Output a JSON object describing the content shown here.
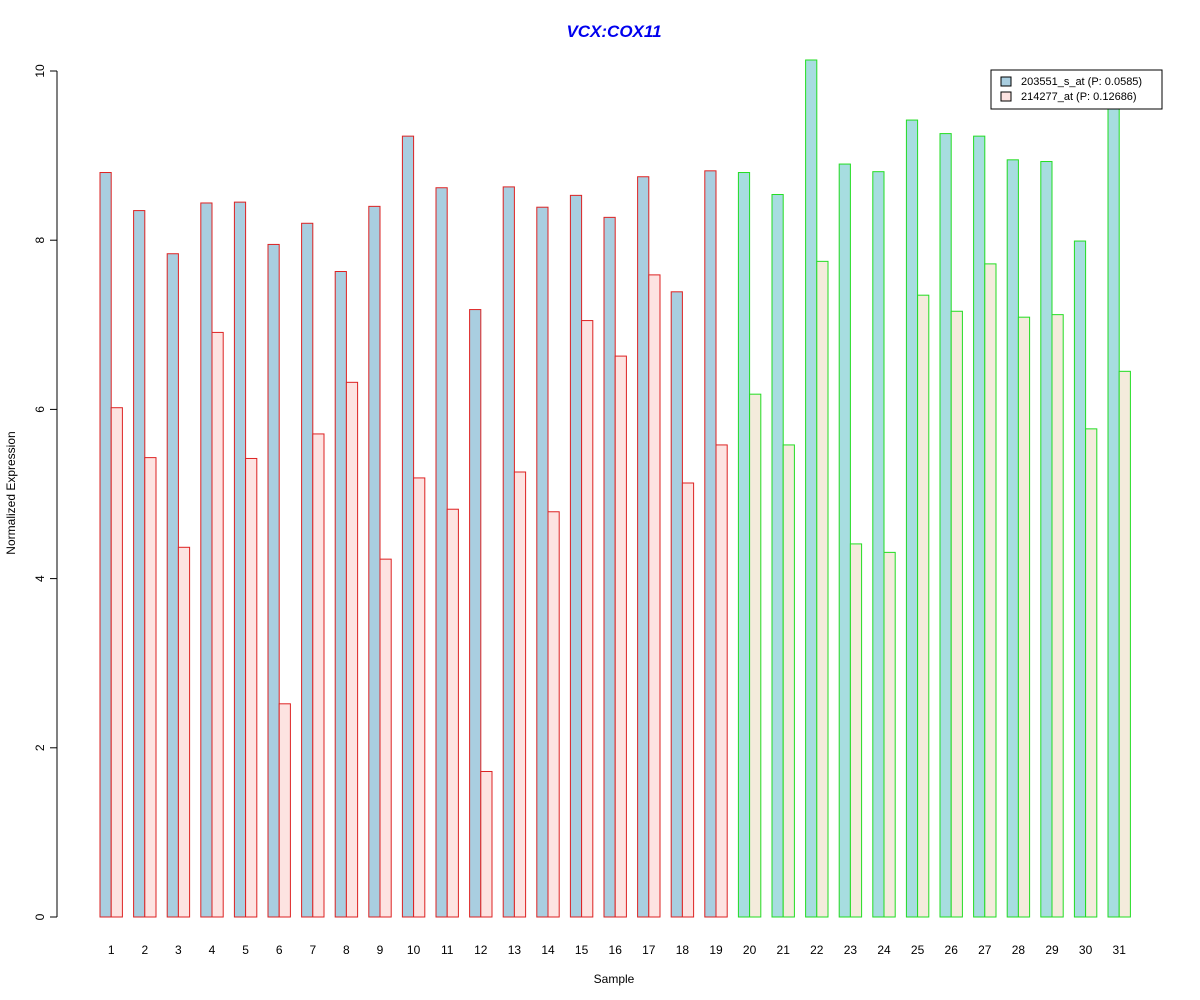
{
  "chart_data": {
    "type": "bar",
    "title": "VCX:COX11",
    "xlabel": "Sample",
    "ylabel": "Normalized Expression",
    "ylim": [
      0,
      10
    ],
    "yticks": [
      "0",
      "2",
      "4",
      "6",
      "8",
      "10"
    ],
    "categories": [
      "1",
      "2",
      "3",
      "4",
      "5",
      "6",
      "7",
      "8",
      "9",
      "10",
      "11",
      "12",
      "13",
      "14",
      "15",
      "16",
      "17",
      "18",
      "19",
      "20",
      "21",
      "22",
      "23",
      "24",
      "25",
      "26",
      "27",
      "28",
      "29",
      "30",
      "31"
    ],
    "series": [
      {
        "name": "203551_s_at (P: 0.0585)",
        "values": [
          8.8,
          8.35,
          7.84,
          8.44,
          8.45,
          7.95,
          8.2,
          7.63,
          8.4,
          9.23,
          8.62,
          7.18,
          8.63,
          8.39,
          8.53,
          8.27,
          8.75,
          7.39,
          8.82,
          8.8,
          8.54,
          10.13,
          8.9,
          8.81,
          9.42,
          9.26,
          9.23,
          8.95,
          8.93,
          7.99,
          9.65
        ]
      },
      {
        "name": "214277_at (P: 0.12686)",
        "values": [
          6.02,
          5.43,
          4.37,
          6.91,
          5.42,
          2.52,
          5.71,
          6.32,
          4.23,
          5.19,
          4.82,
          1.72,
          5.26,
          4.79,
          7.05,
          6.63,
          7.59,
          5.13,
          5.58,
          6.18,
          5.58,
          7.75,
          4.41,
          4.31,
          7.35,
          7.16,
          7.72,
          7.09,
          7.12,
          5.77,
          6.45
        ]
      }
    ],
    "groups": [
      {
        "range": [
          1,
          19
        ],
        "border": "#dd2222",
        "fills": [
          "#a9cee0",
          "#fde3e1"
        ]
      },
      {
        "range": [
          20,
          31
        ],
        "border": "#22dd22",
        "fills": [
          "#a7dde0",
          "#f4ebdc"
        ]
      }
    ],
    "legend_swatches": [
      "#a9cee0",
      "#fde3e1"
    ],
    "legend_position": "top-right",
    "grid": false
  }
}
